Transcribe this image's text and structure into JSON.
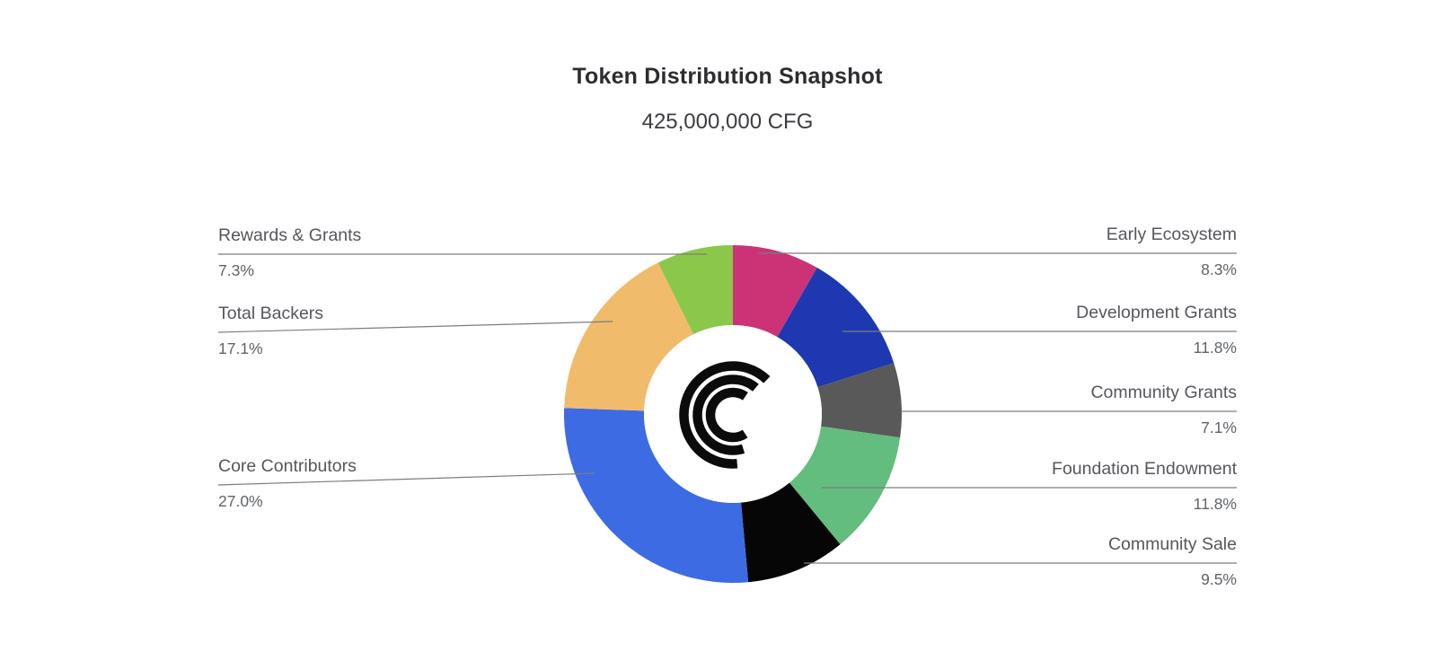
{
  "header": {
    "title": "Token Distribution Snapshot",
    "subtitle": "425,000,000 CFG"
  },
  "chart_data": {
    "type": "pie",
    "style": "donut",
    "title": "Token Distribution Snapshot",
    "subtitle": "425,000,000 CFG",
    "total_supply": "425,000,000 CFG",
    "start_angle_deg": 0,
    "direction": "clockwise",
    "center_logo": "centrifuge-logo",
    "legend_position": "callouts-both-sides",
    "segments": [
      {
        "label": "Early Ecosystem",
        "value": 8.3,
        "display": "8.3%",
        "color": "#cc3377",
        "side": "right",
        "callout": {
          "align": "right",
          "line": [
            1377,
            282,
            845,
            282
          ]
        }
      },
      {
        "label": "Development Grants",
        "value": 11.8,
        "display": "11.8%",
        "color": "#1d38b0",
        "side": "right",
        "callout": {
          "align": "right",
          "line": [
            1377,
            369,
            938,
            369
          ]
        }
      },
      {
        "label": "Community Grants",
        "value": 7.1,
        "display": "7.1%",
        "color": "#595959",
        "side": "right",
        "callout": {
          "align": "right",
          "line": [
            1377,
            458,
            1003,
            458
          ]
        }
      },
      {
        "label": "Foundation Endowment",
        "value": 11.8,
        "display": "11.8%",
        "color": "#63bd7e",
        "side": "right",
        "callout": {
          "align": "right",
          "line": [
            1377,
            543,
            915,
            543
          ]
        }
      },
      {
        "label": "Community Sale",
        "value": 9.5,
        "display": "9.5%",
        "color": "#060606",
        "side": "right",
        "callout": {
          "align": "right",
          "line": [
            1377,
            627,
            895,
            627
          ]
        }
      },
      {
        "label": "Core Contributors",
        "value": 27.0,
        "display": "27.0%",
        "color": "#3c6be4",
        "side": "left",
        "callout": {
          "align": "left",
          "line": [
            243,
            540,
            662,
            527
          ]
        }
      },
      {
        "label": "Total Backers",
        "value": 17.1,
        "display": "17.1%",
        "color": "#f1bb6c",
        "side": "left",
        "callout": {
          "align": "left",
          "line": [
            243,
            370,
            682,
            358
          ]
        }
      },
      {
        "label": "Rewards & Grants",
        "value": 7.3,
        "display": "7.3%",
        "color": "#8bc74b",
        "side": "left",
        "callout": {
          "align": "left",
          "line": [
            243,
            283,
            787,
            283
          ]
        }
      }
    ],
    "layout": {
      "center": [
        816,
        461
      ],
      "outer_radius": 188,
      "inner_radius": 99,
      "leader_line_color": "#7a7d82",
      "logo_ink": "#0b0b0b",
      "logo_arc_radii": [
        54.5,
        39.5,
        25
      ],
      "logo_stroke_width": 10.5
    }
  }
}
